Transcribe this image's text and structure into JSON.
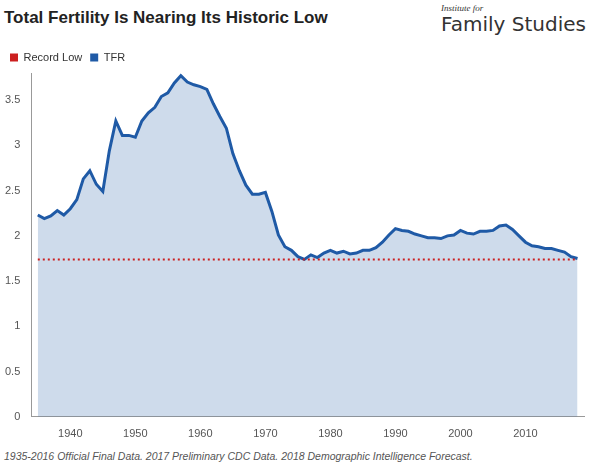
{
  "chart_data": {
    "type": "line",
    "title": "Total Fertility Is Nearing Its Historic Low",
    "publisher": [
      "Institute for",
      "Family Studies"
    ],
    "footnote": "1935-2016 Official Final Data. 2017 Preliminary CDC Data. 2018 Demographic Intelligence Forecast.",
    "x": [
      1935,
      1936,
      1937,
      1938,
      1939,
      1940,
      1941,
      1942,
      1943,
      1944,
      1945,
      1946,
      1947,
      1948,
      1949,
      1950,
      1951,
      1952,
      1953,
      1954,
      1955,
      1956,
      1957,
      1958,
      1959,
      1960,
      1961,
      1962,
      1963,
      1964,
      1965,
      1966,
      1967,
      1968,
      1969,
      1970,
      1971,
      1972,
      1973,
      1974,
      1975,
      1976,
      1977,
      1978,
      1979,
      1980,
      1981,
      1982,
      1983,
      1984,
      1985,
      1986,
      1987,
      1988,
      1989,
      1990,
      1991,
      1992,
      1993,
      1994,
      1995,
      1996,
      1997,
      1998,
      1999,
      2000,
      2001,
      2002,
      2003,
      2004,
      2005,
      2006,
      2007,
      2008,
      2009,
      2010,
      2011,
      2012,
      2013,
      2014,
      2015,
      2016,
      2017,
      2018
    ],
    "series": [
      {
        "name": "Record Low",
        "color": "#cc1f1f",
        "type": "line",
        "line_style": "dotted",
        "values": [
          1.74,
          1.74,
          1.74,
          1.74,
          1.74,
          1.74,
          1.74,
          1.74,
          1.74,
          1.74,
          1.74,
          1.74,
          1.74,
          1.74,
          1.74,
          1.74,
          1.74,
          1.74,
          1.74,
          1.74,
          1.74,
          1.74,
          1.74,
          1.74,
          1.74,
          1.74,
          1.74,
          1.74,
          1.74,
          1.74,
          1.74,
          1.74,
          1.74,
          1.74,
          1.74,
          1.74,
          1.74,
          1.74,
          1.74,
          1.74,
          1.74,
          1.74,
          1.74,
          1.74,
          1.74,
          1.74,
          1.74,
          1.74,
          1.74,
          1.74,
          1.74,
          1.74,
          1.74,
          1.74,
          1.74,
          1.74,
          1.74,
          1.74,
          1.74,
          1.74,
          1.74,
          1.74,
          1.74,
          1.74,
          1.74,
          1.74,
          1.74,
          1.74,
          1.74,
          1.74,
          1.74,
          1.74,
          1.74,
          1.74,
          1.74,
          1.74,
          1.74,
          1.74,
          1.74,
          1.74,
          1.74,
          1.74,
          1.74,
          1.74
        ]
      },
      {
        "name": "TFR",
        "color": "#1f5aa6",
        "type": "area",
        "line_style": "solid",
        "values": [
          2.23,
          2.19,
          2.22,
          2.28,
          2.23,
          2.3,
          2.4,
          2.63,
          2.72,
          2.57,
          2.49,
          2.94,
          3.27,
          3.11,
          3.11,
          3.09,
          3.27,
          3.36,
          3.42,
          3.54,
          3.58,
          3.69,
          3.77,
          3.7,
          3.67,
          3.65,
          3.62,
          3.46,
          3.32,
          3.19,
          2.91,
          2.72,
          2.56,
          2.46,
          2.46,
          2.48,
          2.27,
          2.01,
          1.88,
          1.84,
          1.77,
          1.74,
          1.79,
          1.76,
          1.81,
          1.84,
          1.81,
          1.83,
          1.8,
          1.81,
          1.84,
          1.84,
          1.87,
          1.93,
          2.01,
          2.08,
          2.06,
          2.05,
          2.02,
          2.0,
          1.98,
          1.98,
          1.97,
          2.0,
          2.01,
          2.06,
          2.03,
          2.02,
          2.05,
          2.05,
          2.06,
          2.11,
          2.12,
          2.07,
          2.0,
          1.93,
          1.89,
          1.88,
          1.86,
          1.86,
          1.84,
          1.82,
          1.77,
          1.75
        ]
      }
    ],
    "xlim": [
      1934,
      2019
    ],
    "xticks": [
      1940,
      1950,
      1960,
      1970,
      1980,
      1990,
      2000,
      2010
    ],
    "ylim": [
      0,
      3.8
    ],
    "yticks": [
      0,
      0.5,
      1,
      1.5,
      2,
      2.5,
      3,
      3.5
    ],
    "grid": false,
    "legend": "top-left"
  }
}
